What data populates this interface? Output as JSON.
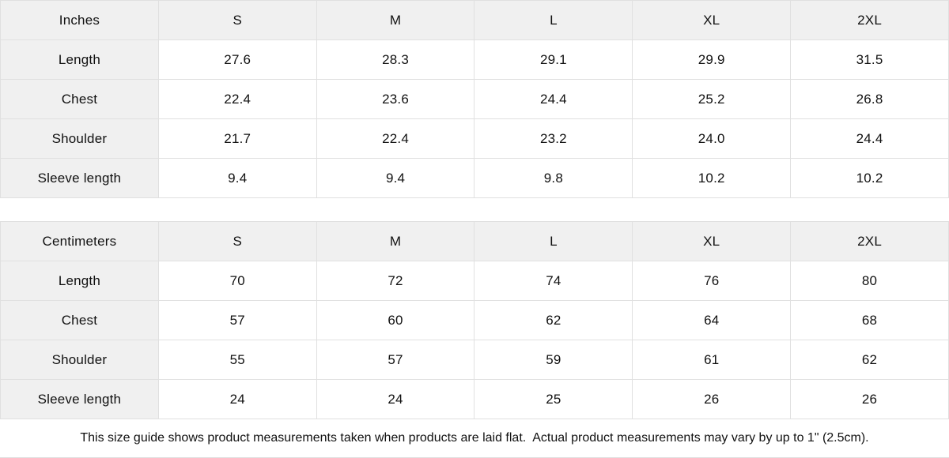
{
  "tables": [
    {
      "id": "inches",
      "unit_label": "Inches",
      "sizes": [
        "S",
        "M",
        "L",
        "XL",
        "2XL"
      ],
      "rows": [
        {
          "label": "Length",
          "values": [
            "27.6",
            "28.3",
            "29.1",
            "29.9",
            "31.5"
          ]
        },
        {
          "label": "Chest",
          "values": [
            "22.4",
            "23.6",
            "24.4",
            "25.2",
            "26.8"
          ]
        },
        {
          "label": "Shoulder",
          "values": [
            "21.7",
            "22.4",
            "23.2",
            "24.0",
            "24.4"
          ]
        },
        {
          "label": "Sleeve length",
          "values": [
            "9.4",
            "9.4",
            "9.8",
            "10.2",
            "10.2"
          ]
        }
      ]
    },
    {
      "id": "centimeters",
      "unit_label": "Centimeters",
      "sizes": [
        "S",
        "M",
        "L",
        "XL",
        "2XL"
      ],
      "rows": [
        {
          "label": "Length",
          "values": [
            "70",
            "72",
            "74",
            "76",
            "80"
          ]
        },
        {
          "label": "Chest",
          "values": [
            "57",
            "60",
            "62",
            "64",
            "68"
          ]
        },
        {
          "label": "Shoulder",
          "values": [
            "55",
            "57",
            "59",
            "61",
            "62"
          ]
        },
        {
          "label": "Sleeve length",
          "values": [
            "24",
            "24",
            "25",
            "26",
            "26"
          ]
        }
      ]
    }
  ],
  "footer": {
    "note": "This size guide shows product measurements taken when products are laid flat.  Actual product measurements may vary by up to 1\" (2.5cm)."
  },
  "colors": {
    "cell_header_bg": "#f0f0f0",
    "border": "#e0e0e0",
    "text": "#111111",
    "background": "#ffffff"
  },
  "chart_data": [
    {
      "type": "table",
      "title": "Size guide (Inches)",
      "columns": [
        "Inches",
        "S",
        "M",
        "L",
        "XL",
        "2XL"
      ],
      "rows": [
        [
          "Length",
          27.6,
          28.3,
          29.1,
          29.9,
          31.5
        ],
        [
          "Chest",
          22.4,
          23.6,
          24.4,
          25.2,
          26.8
        ],
        [
          "Shoulder",
          21.7,
          22.4,
          23.2,
          24.0,
          24.4
        ],
        [
          "Sleeve length",
          9.4,
          9.4,
          9.8,
          10.2,
          10.2
        ]
      ]
    },
    {
      "type": "table",
      "title": "Size guide (Centimeters)",
      "columns": [
        "Centimeters",
        "S",
        "M",
        "L",
        "XL",
        "2XL"
      ],
      "rows": [
        [
          "Length",
          70,
          72,
          74,
          76,
          80
        ],
        [
          "Chest",
          57,
          60,
          62,
          64,
          68
        ],
        [
          "Shoulder",
          55,
          57,
          59,
          61,
          62
        ],
        [
          "Sleeve length",
          24,
          24,
          25,
          26,
          26
        ]
      ]
    }
  ]
}
